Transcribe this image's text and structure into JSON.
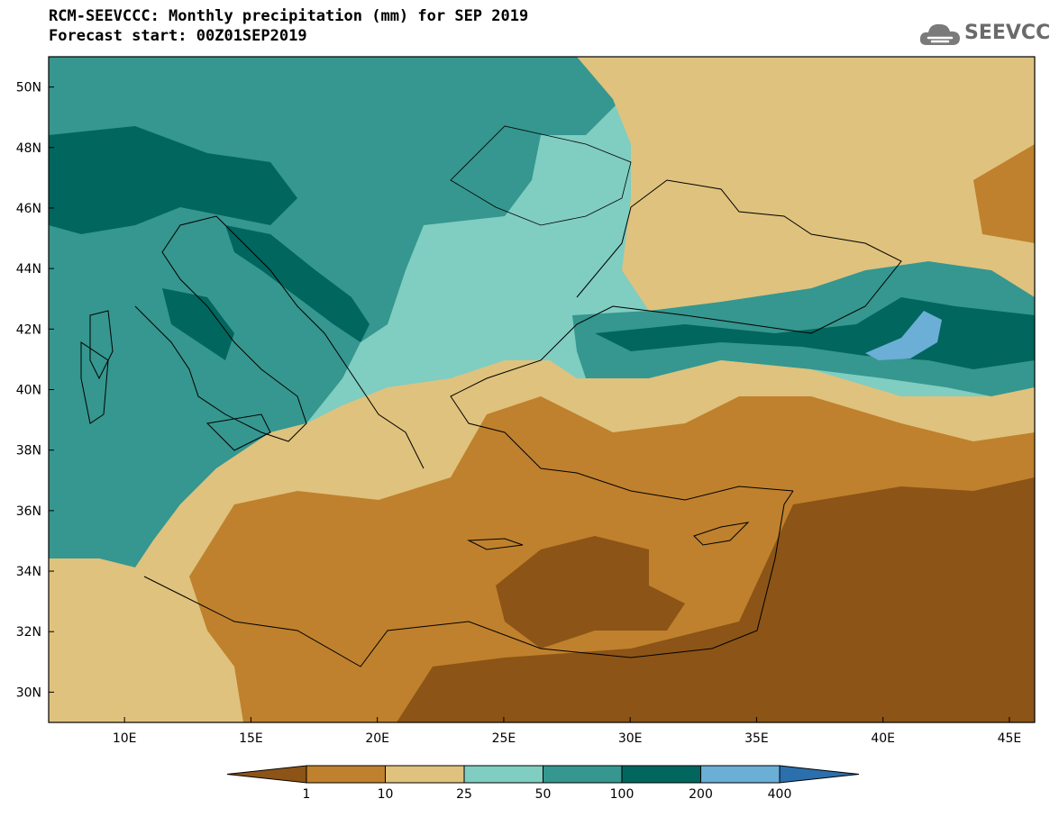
{
  "header": {
    "title": "RCM-SEEVCCC: Monthly precipitation (mm) for SEP 2019",
    "subtitle": "Forecast start: 00Z01SEP2019"
  },
  "logo": {
    "text": "SEEVCCC",
    "icon": "cloud-icon"
  },
  "map": {
    "lat_labels": [
      "50N",
      "48N",
      "46N",
      "44N",
      "42N",
      "40N",
      "38N",
      "36N",
      "34N",
      "32N",
      "30N"
    ],
    "lon_labels": [
      "10E",
      "15E",
      "20E",
      "25E",
      "30E",
      "35E",
      "40E",
      "45E"
    ],
    "lat_range": [
      29,
      51
    ],
    "lon_range": [
      7,
      46
    ]
  },
  "legend": {
    "thresholds": [
      "1",
      "10",
      "25",
      "50",
      "100",
      "200",
      "400"
    ],
    "colors": [
      "#8c5416",
      "#bf812d",
      "#dfc27d",
      "#80cdc1",
      "#35978f",
      "#01665e",
      "#6baed6",
      "#2c6fad"
    ]
  }
}
